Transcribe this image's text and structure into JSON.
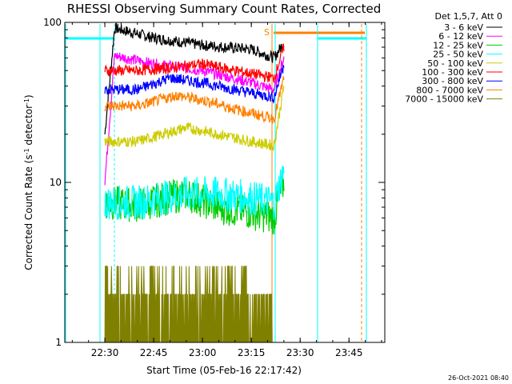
{
  "chart_data": {
    "type": "line",
    "title": "RHESSI Observing Summary Count Rates, Corrected",
    "xlabel": "Start Time (05-Feb-16 22:17:42)",
    "ylabel": "Corrected Count Rate (s⁻¹ detector⁻¹)",
    "ylabel_main": "Corrected Count Rate (s",
    "ylabel_sup1": "-1",
    "ylabel_mid": " detector",
    "ylabel_sup2": "-1",
    "ylabel_end": ")",
    "y_scale": "log",
    "ylim": [
      1,
      100
    ],
    "xlim": [
      "22:17:42",
      "23:56:00"
    ],
    "x_ticks": [
      "22:30",
      "22:45",
      "23:00",
      "23:15",
      "23:30",
      "23:45"
    ],
    "y_ticks": [
      "1",
      "10",
      "100"
    ],
    "legend_header": "Det 1,5,7, Att 0",
    "legend_position": "outside-right",
    "annotation_s": "S",
    "footer_date": "26-Oct-2021 08:40",
    "series": [
      {
        "name": "3 - 6 keV",
        "color": "#000000",
        "values": [
          {
            "x": "22:30",
            "y": 20
          },
          {
            "x": "22:33",
            "y": 92
          },
          {
            "x": "22:45",
            "y": 80
          },
          {
            "x": "23:00",
            "y": 72
          },
          {
            "x": "23:15",
            "y": 68
          },
          {
            "x": "23:22",
            "y": 60
          },
          {
            "x": "23:25",
            "y": 75
          }
        ]
      },
      {
        "name": "6 - 12 keV",
        "color": "#ff00ff",
        "values": [
          {
            "x": "22:30",
            "y": 10
          },
          {
            "x": "22:33",
            "y": 62
          },
          {
            "x": "22:45",
            "y": 55
          },
          {
            "x": "23:00",
            "y": 50
          },
          {
            "x": "23:15",
            "y": 42
          },
          {
            "x": "23:22",
            "y": 38
          },
          {
            "x": "23:25",
            "y": 60
          }
        ]
      },
      {
        "name": "12 - 25 keV",
        "color": "#00cc00",
        "values": [
          {
            "x": "22:30",
            "y": 7.5
          },
          {
            "x": "22:40",
            "y": 7.2
          },
          {
            "x": "22:55",
            "y": 8.5
          },
          {
            "x": "23:05",
            "y": 7
          },
          {
            "x": "23:15",
            "y": 6.5
          },
          {
            "x": "23:22",
            "y": 6
          },
          {
            "x": "23:25",
            "y": 10
          }
        ]
      },
      {
        "name": "25 - 50 keV",
        "color": "#00ffff",
        "values": [
          {
            "x": "22:30",
            "y": 7.5
          },
          {
            "x": "22:40",
            "y": 7.5
          },
          {
            "x": "22:55",
            "y": 8.5
          },
          {
            "x": "23:05",
            "y": 8.5
          },
          {
            "x": "23:15",
            "y": 8
          },
          {
            "x": "23:22",
            "y": 7.5
          },
          {
            "x": "23:25",
            "y": 12
          }
        ]
      },
      {
        "name": "50 - 100 keV",
        "color": "#cccc00",
        "values": [
          {
            "x": "22:30",
            "y": 18
          },
          {
            "x": "22:40",
            "y": 18
          },
          {
            "x": "22:55",
            "y": 22
          },
          {
            "x": "23:05",
            "y": 20
          },
          {
            "x": "23:15",
            "y": 18
          },
          {
            "x": "23:22",
            "y": 17
          },
          {
            "x": "23:25",
            "y": 40
          }
        ]
      },
      {
        "name": "100 - 300 keV",
        "color": "#ff0000",
        "values": [
          {
            "x": "22:30",
            "y": 50
          },
          {
            "x": "22:40",
            "y": 50
          },
          {
            "x": "22:50",
            "y": 52
          },
          {
            "x": "23:00",
            "y": 55
          },
          {
            "x": "23:10",
            "y": 50
          },
          {
            "x": "23:22",
            "y": 45
          },
          {
            "x": "23:25",
            "y": 70
          }
        ]
      },
      {
        "name": "300 - 800 keV",
        "color": "#0000ff",
        "values": [
          {
            "x": "22:30",
            "y": 38
          },
          {
            "x": "22:40",
            "y": 38
          },
          {
            "x": "22:50",
            "y": 45
          },
          {
            "x": "23:00",
            "y": 42
          },
          {
            "x": "23:10",
            "y": 38
          },
          {
            "x": "23:22",
            "y": 34
          },
          {
            "x": "23:25",
            "y": 55
          }
        ]
      },
      {
        "name": "800 - 7000 keV",
        "color": "#ff8000",
        "values": [
          {
            "x": "22:30",
            "y": 30
          },
          {
            "x": "22:40",
            "y": 30
          },
          {
            "x": "22:52",
            "y": 35
          },
          {
            "x": "23:02",
            "y": 32
          },
          {
            "x": "23:12",
            "y": 28
          },
          {
            "x": "23:22",
            "y": 25
          },
          {
            "x": "23:25",
            "y": 45
          }
        ]
      },
      {
        "name": "7000 - 15000 keV",
        "color": "#808000",
        "values": [
          {
            "x": "22:30",
            "y": 1.5
          },
          {
            "x": "22:50",
            "y": 2
          },
          {
            "x": "23:00",
            "y": 2.2
          },
          {
            "x": "23:10",
            "y": 2
          },
          {
            "x": "23:22",
            "y": 1.8
          }
        ]
      }
    ]
  }
}
